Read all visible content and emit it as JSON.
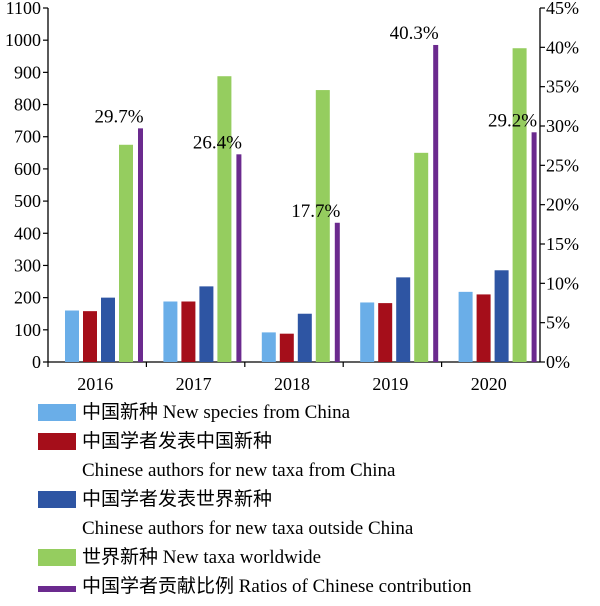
{
  "chart_data": {
    "type": "bar",
    "categories": [
      "2016",
      "2017",
      "2018",
      "2019",
      "2020"
    ],
    "y_left": {
      "ylim": [
        0,
        1100
      ],
      "ticks": [
        "0",
        "100",
        "200",
        "300",
        "400",
        "500",
        "600",
        "700",
        "800",
        "900",
        "1000",
        "1100"
      ]
    },
    "y_right": {
      "ylim": [
        0,
        45
      ],
      "ticks": [
        "0%",
        "5%",
        "10%",
        "15%",
        "20%",
        "25%",
        "30%",
        "35%",
        "40%",
        "45%"
      ]
    },
    "series": [
      {
        "name": "中国新种 New species from China",
        "name_line2": "",
        "color": "#6aaee8",
        "axis": "left",
        "values": [
          160,
          188,
          92,
          185,
          218
        ]
      },
      {
        "name": "中国学者发表中国新种",
        "name_line2": "Chinese authors for new taxa from China",
        "color": "#a50e1a",
        "axis": "left",
        "values": [
          158,
          188,
          88,
          183,
          210
        ]
      },
      {
        "name": "中国学者发表世界新种",
        "name_line2": "Chinese authors for new taxa outside China",
        "color": "#2e55a3",
        "axis": "left",
        "values": [
          200,
          235,
          150,
          263,
          285
        ]
      },
      {
        "name": "世界新种 New taxa worldwide",
        "name_line2": "",
        "color": "#95cd5f",
        "axis": "left",
        "values": [
          675,
          888,
          845,
          650,
          975
        ]
      },
      {
        "name": "中国学者贡献比例 Ratios of Chinese contribution",
        "name_line2": "",
        "color": "#6b2a8e",
        "axis": "right",
        "values": [
          29.7,
          26.4,
          17.7,
          40.3,
          29.2
        ]
      }
    ],
    "data_labels": [
      "29.7%",
      "26.4%",
      "17.7%",
      "40.3%",
      "29.2%"
    ],
    "grid": false,
    "legend_position": "bottom"
  }
}
